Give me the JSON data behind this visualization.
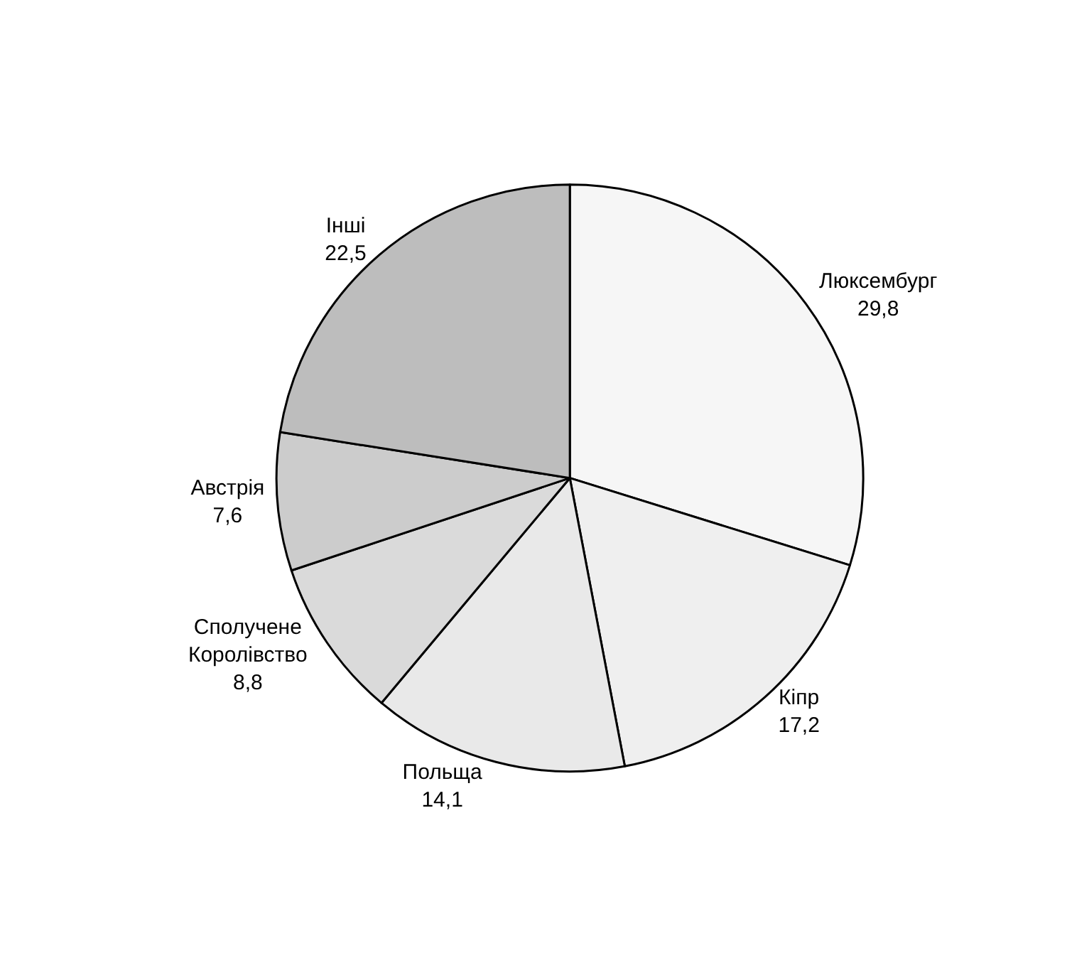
{
  "chart_data": {
    "type": "pie",
    "categories": [
      "Люксембург",
      "Кіпр",
      "Польща",
      "Сполучене Королівство",
      "Австрія",
      "Інші"
    ],
    "values": [
      29.8,
      17.2,
      14.1,
      8.8,
      7.6,
      22.5
    ],
    "value_labels": [
      "29,8",
      "17,2",
      "14,1",
      "8,8",
      "7,6",
      "22,5"
    ],
    "colors": [
      "#f6f6f6",
      "#efefef",
      "#e9e9e9",
      "#dadada",
      "#cccccc",
      "#bdbdbd"
    ],
    "legend": false
  }
}
